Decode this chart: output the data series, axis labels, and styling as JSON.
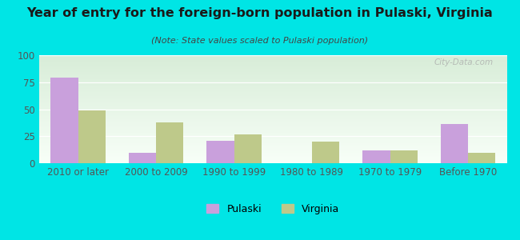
{
  "title": "Year of entry for the foreign-born population in Pulaski, Virginia",
  "subtitle": "(Note: State values scaled to Pulaski population)",
  "categories": [
    "2010 or later",
    "2000 to 2009",
    "1990 to 1999",
    "1980 to 1989",
    "1970 to 1979",
    "Before 1970"
  ],
  "pulaski_values": [
    79,
    10,
    21,
    0,
    12,
    36
  ],
  "virginia_values": [
    49,
    38,
    27,
    20,
    12,
    10
  ],
  "pulaski_color": "#c9a0dc",
  "virginia_color": "#bec98a",
  "background_color": "#00e5e5",
  "ylim": [
    0,
    100
  ],
  "yticks": [
    0,
    25,
    50,
    75,
    100
  ],
  "bar_width": 0.35,
  "watermark": "City-Data.com",
  "title_fontsize": 11.5,
  "subtitle_fontsize": 8,
  "tick_fontsize": 8.5
}
